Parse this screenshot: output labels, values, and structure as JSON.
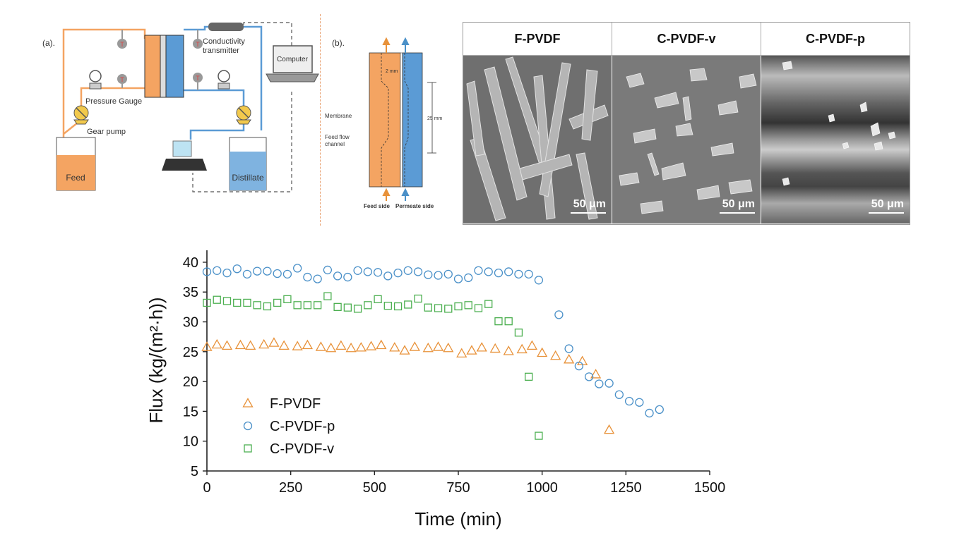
{
  "panel_a": {
    "label": "(a).",
    "conductivity_label_1": "Conductivity",
    "conductivity_label_2": "transmitter",
    "computer_label": "Computer",
    "pressure_label": "Pressure Gauge",
    "pump_label": "Gear pump",
    "feed_label": "Feed",
    "distillate_label": "Distillate",
    "thermo_symbol": "T"
  },
  "panel_b": {
    "label": "(b).",
    "gap_label": "2 mm",
    "length_label": "25 mm",
    "membrane_label": "Membrane",
    "flow_label_1": "Feed flow",
    "flow_label_2": "channel",
    "feed_side": "Feed side",
    "permeate_side": "Permeate side"
  },
  "sem": {
    "headers": [
      "F-PVDF",
      "C-PVDF-v",
      "C-PVDF-p"
    ],
    "scale_label": "50 μm"
  },
  "chart_data": {
    "type": "scatter",
    "xlabel": "Time (min)",
    "ylabel": "Flux (kg/(m²·h))",
    "xlim": [
      0,
      1500
    ],
    "ylim": [
      5,
      42
    ],
    "xticks": [
      0,
      250,
      500,
      750,
      1000,
      1250,
      1500
    ],
    "yticks": [
      5,
      10,
      15,
      20,
      25,
      30,
      35,
      40
    ],
    "grid": false,
    "legend_position": "bottom-left",
    "series": [
      {
        "name": "F-PVDF",
        "marker": "triangle",
        "color": "#E8923A",
        "x": [
          0,
          30,
          60,
          100,
          130,
          170,
          200,
          230,
          270,
          300,
          340,
          370,
          400,
          430,
          460,
          490,
          520,
          560,
          590,
          620,
          660,
          690,
          720,
          760,
          790,
          820,
          860,
          900,
          940,
          970,
          1000,
          1040,
          1080,
          1120,
          1160,
          1200
        ],
        "y": [
          25.8,
          26.2,
          26.0,
          26.1,
          26.0,
          26.2,
          26.5,
          26.0,
          25.9,
          26.1,
          25.8,
          25.6,
          26.0,
          25.6,
          25.7,
          25.9,
          26.1,
          25.7,
          25.2,
          25.8,
          25.6,
          25.8,
          25.6,
          24.7,
          25.2,
          25.7,
          25.5,
          25.1,
          25.4,
          26.0,
          24.8,
          24.3,
          23.7,
          23.4,
          21.2,
          11.9
        ]
      },
      {
        "name": "C-PVDF-p",
        "marker": "circle",
        "color": "#4A90C8",
        "x": [
          0,
          30,
          60,
          90,
          120,
          150,
          180,
          210,
          240,
          270,
          300,
          330,
          360,
          390,
          420,
          450,
          480,
          510,
          540,
          570,
          600,
          630,
          660,
          690,
          720,
          750,
          780,
          810,
          840,
          870,
          900,
          930,
          960,
          990,
          1050,
          1080,
          1110,
          1140,
          1170,
          1200,
          1230,
          1260,
          1290,
          1320,
          1350
        ],
        "y": [
          38.4,
          38.6,
          38.2,
          38.9,
          38.0,
          38.5,
          38.5,
          38.1,
          38.0,
          39.0,
          37.5,
          37.2,
          38.7,
          37.7,
          37.5,
          38.6,
          38.4,
          38.3,
          37.7,
          38.2,
          38.6,
          38.4,
          37.9,
          37.8,
          38.0,
          37.2,
          37.4,
          38.6,
          38.4,
          38.2,
          38.4,
          38.0,
          38.0,
          37.0,
          31.2,
          25.5,
          22.6,
          20.8,
          19.6,
          19.7,
          17.8,
          16.7,
          16.5,
          14.7,
          15.3
        ]
      },
      {
        "name": "C-PVDF-v",
        "marker": "square",
        "color": "#4CAF50",
        "x": [
          0,
          30,
          60,
          90,
          120,
          150,
          180,
          210,
          240,
          270,
          300,
          330,
          360,
          390,
          420,
          450,
          480,
          510,
          540,
          570,
          600,
          630,
          660,
          690,
          720,
          750,
          780,
          810,
          840,
          870,
          900,
          930,
          960,
          990
        ],
        "y": [
          33.2,
          33.7,
          33.5,
          33.2,
          33.2,
          32.8,
          32.6,
          33.2,
          33.8,
          32.8,
          32.8,
          32.8,
          34.3,
          32.5,
          32.4,
          32.2,
          32.8,
          33.8,
          32.7,
          32.6,
          32.9,
          33.9,
          32.4,
          32.3,
          32.2,
          32.6,
          32.8,
          32.3,
          33.0,
          30.1,
          30.1,
          28.2,
          20.8,
          10.9
        ]
      }
    ]
  }
}
